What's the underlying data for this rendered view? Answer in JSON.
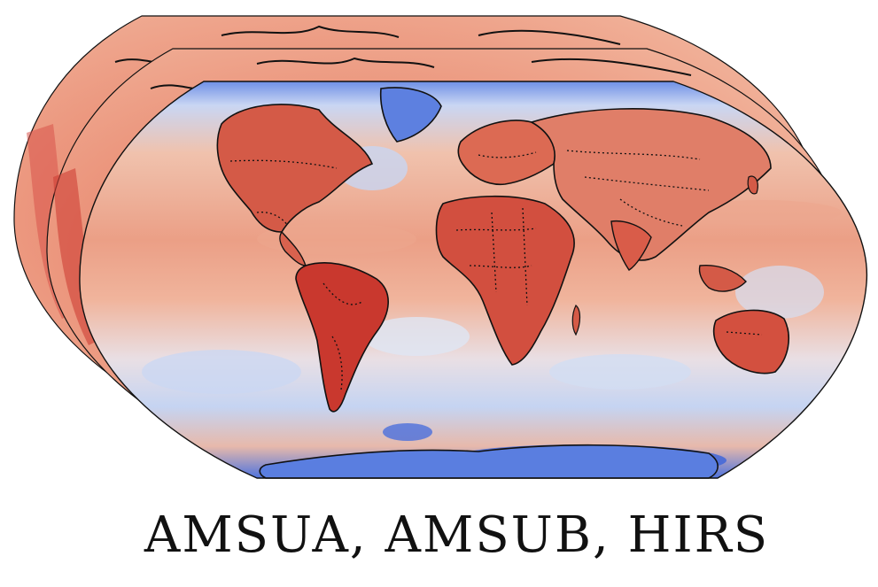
{
  "figure": {
    "caption": "AMSUA, AMSUB, HIRS",
    "layers": [
      {
        "id": "layer-back",
        "tone": "warm"
      },
      {
        "id": "layer-middle",
        "tone": "warm"
      },
      {
        "id": "layer-front",
        "tone": "mixed"
      }
    ],
    "projection": "robinson",
    "colormap": [
      "#3b63d8",
      "#9fbcf0",
      "#e8ecf5",
      "#f2b8a0",
      "#e3735a",
      "#c2342c"
    ],
    "features": [
      "coastlines",
      "country-borders-dotted"
    ]
  }
}
